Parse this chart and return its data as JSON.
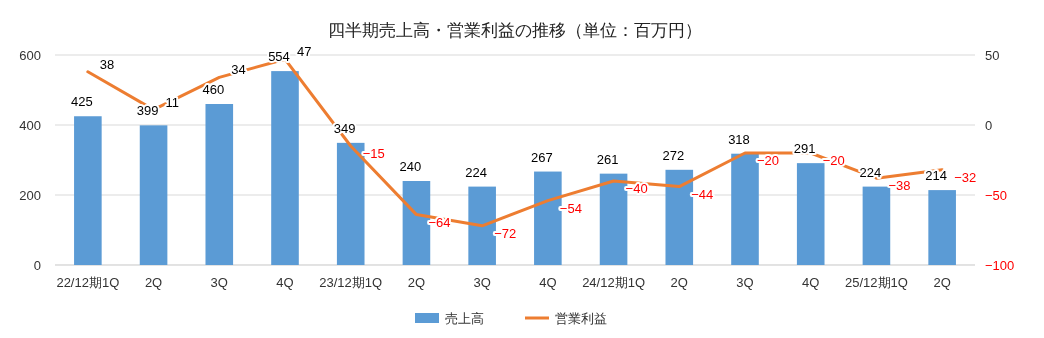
{
  "chart_data": {
    "type": "bar",
    "title": "四半期売上高・営業利益の推移（単位：百万円）",
    "categories": [
      "22/12期1Q",
      "2Q",
      "3Q",
      "4Q",
      "23/12期1Q",
      "2Q",
      "3Q",
      "4Q",
      "24/12期1Q",
      "2Q",
      "3Q",
      "4Q",
      "25/12期1Q",
      "2Q"
    ],
    "series": [
      {
        "name": "売上高",
        "color": "#5b9bd5",
        "values": [
          425,
          399,
          460,
          554,
          349,
          240,
          224,
          267,
          261,
          272,
          318,
          291,
          224,
          214
        ]
      },
      {
        "name": "営業利益",
        "type": "line",
        "axis": "y2",
        "color": "#ed7d31",
        "values": [
          38,
          11,
          34,
          47,
          -15,
          -64,
          -72,
          -54,
          -40,
          -44,
          -20,
          -20,
          -38,
          -32
        ]
      }
    ],
    "ylim": [
      0,
      600
    ],
    "yticks": [
      0,
      200,
      400,
      600
    ],
    "y2lim": [
      -100,
      50
    ],
    "y2ticks": [
      -100,
      -50,
      0,
      50
    ],
    "grid": "y",
    "legend": "bottom",
    "data_labels": true
  }
}
